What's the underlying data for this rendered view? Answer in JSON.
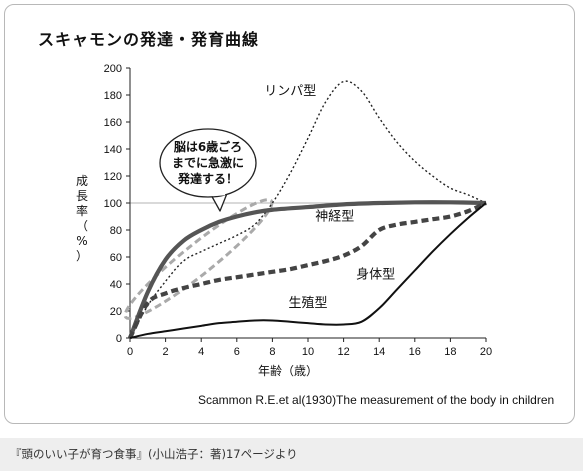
{
  "page": {
    "title": "スキャモンの発達・発育曲線",
    "source": "Scammon R.E.et al(1930)The measurement of the body in children",
    "caption": "『頭のいい子が育つ食事』(小山浩子：著)17ページより"
  },
  "chart_data": {
    "type": "line",
    "xlabel": "年齢（歳）",
    "ylabel": "成長率（%）",
    "xlim": [
      0,
      20
    ],
    "ylim": [
      0,
      200
    ],
    "xticks": [
      0,
      2,
      4,
      6,
      8,
      10,
      12,
      14,
      16,
      18,
      20
    ],
    "yticks": [
      0,
      20,
      40,
      60,
      80,
      100,
      120,
      140,
      160,
      180,
      200
    ],
    "reference_line": 100,
    "grid": false,
    "series": [
      {
        "name": "リンパ型",
        "style": "dotted",
        "color": "#222222",
        "x": [
          0,
          1,
          2,
          3,
          4,
          5,
          6,
          7,
          8,
          9,
          10,
          11,
          12,
          13,
          14,
          15,
          16,
          17,
          18,
          19,
          20
        ],
        "y": [
          0,
          24,
          42,
          57,
          64,
          70,
          76,
          84,
          100,
          122,
          148,
          175,
          190,
          183,
          163,
          145,
          131,
          120,
          111,
          106,
          100
        ]
      },
      {
        "name": "神経型",
        "style": "solid-thick",
        "color": "#555555",
        "x": [
          0,
          1,
          2,
          3,
          4,
          5,
          6,
          7,
          8,
          10,
          12,
          14,
          16,
          18,
          20
        ],
        "y": [
          0,
          34,
          58,
          72,
          80,
          86,
          90,
          93,
          95,
          97,
          99,
          100,
          100.5,
          100.5,
          100
        ]
      },
      {
        "name": "身体型",
        "style": "dashed-thick",
        "color": "#444444",
        "x": [
          0,
          1,
          2,
          3,
          4,
          5,
          6,
          7,
          8,
          9,
          10,
          11,
          12,
          13,
          14,
          15,
          16,
          17,
          18,
          19,
          20
        ],
        "y": [
          0,
          26,
          33,
          37,
          40,
          43,
          45,
          47,
          49,
          51,
          54,
          57,
          61,
          68,
          80,
          84,
          86,
          88,
          90,
          94,
          100
        ]
      },
      {
        "name": "生殖型",
        "style": "solid",
        "color": "#111111",
        "x": [
          0,
          1,
          2,
          3,
          4,
          5,
          6,
          7,
          8,
          9,
          10,
          11,
          12,
          13,
          14,
          15,
          16,
          17,
          18,
          19,
          20
        ],
        "y": [
          0,
          3,
          5,
          7,
          9,
          11,
          12,
          13,
          13,
          12,
          11,
          10,
          10,
          12,
          22,
          36,
          50,
          64,
          77,
          89,
          100
        ]
      }
    ],
    "annotations": [
      {
        "text": "脳は6歳ごろ",
        "type": "callout-line"
      },
      {
        "text": "までに急激に",
        "type": "callout-line"
      },
      {
        "text": "発達する！",
        "type": "callout-line"
      }
    ]
  }
}
